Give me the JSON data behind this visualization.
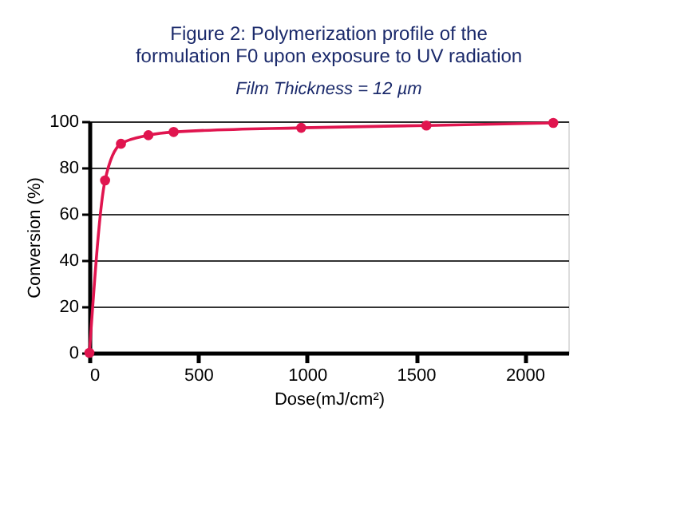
{
  "chart_data": {
    "type": "line",
    "title": [
      "Figure 2: Polymerization profile of the",
      "formulation F0 upon exposure to UV radiation"
    ],
    "subtitle": "Film Thickness = 12 µm",
    "xlabel": "Dose(mJ/cm²)",
    "ylabel": "Conversion (%)",
    "x": [
      0,
      72,
      145,
      271,
      387,
      973,
      1548,
      2131
    ],
    "series": [
      {
        "color": "#e0154f",
        "values": [
          0,
          74.5,
          90.3,
          94,
          95.4,
          97.2,
          98.2,
          99.3
        ]
      }
    ],
    "xlim": [
      0,
      2200
    ],
    "xticks": [
      0,
      500,
      1000,
      1500,
      2000
    ],
    "ylim": [
      0,
      100
    ],
    "yticks": [
      0,
      20,
      40,
      60,
      80,
      100
    ],
    "grid": "y",
    "marker": "circle",
    "line_style": "solid"
  }
}
